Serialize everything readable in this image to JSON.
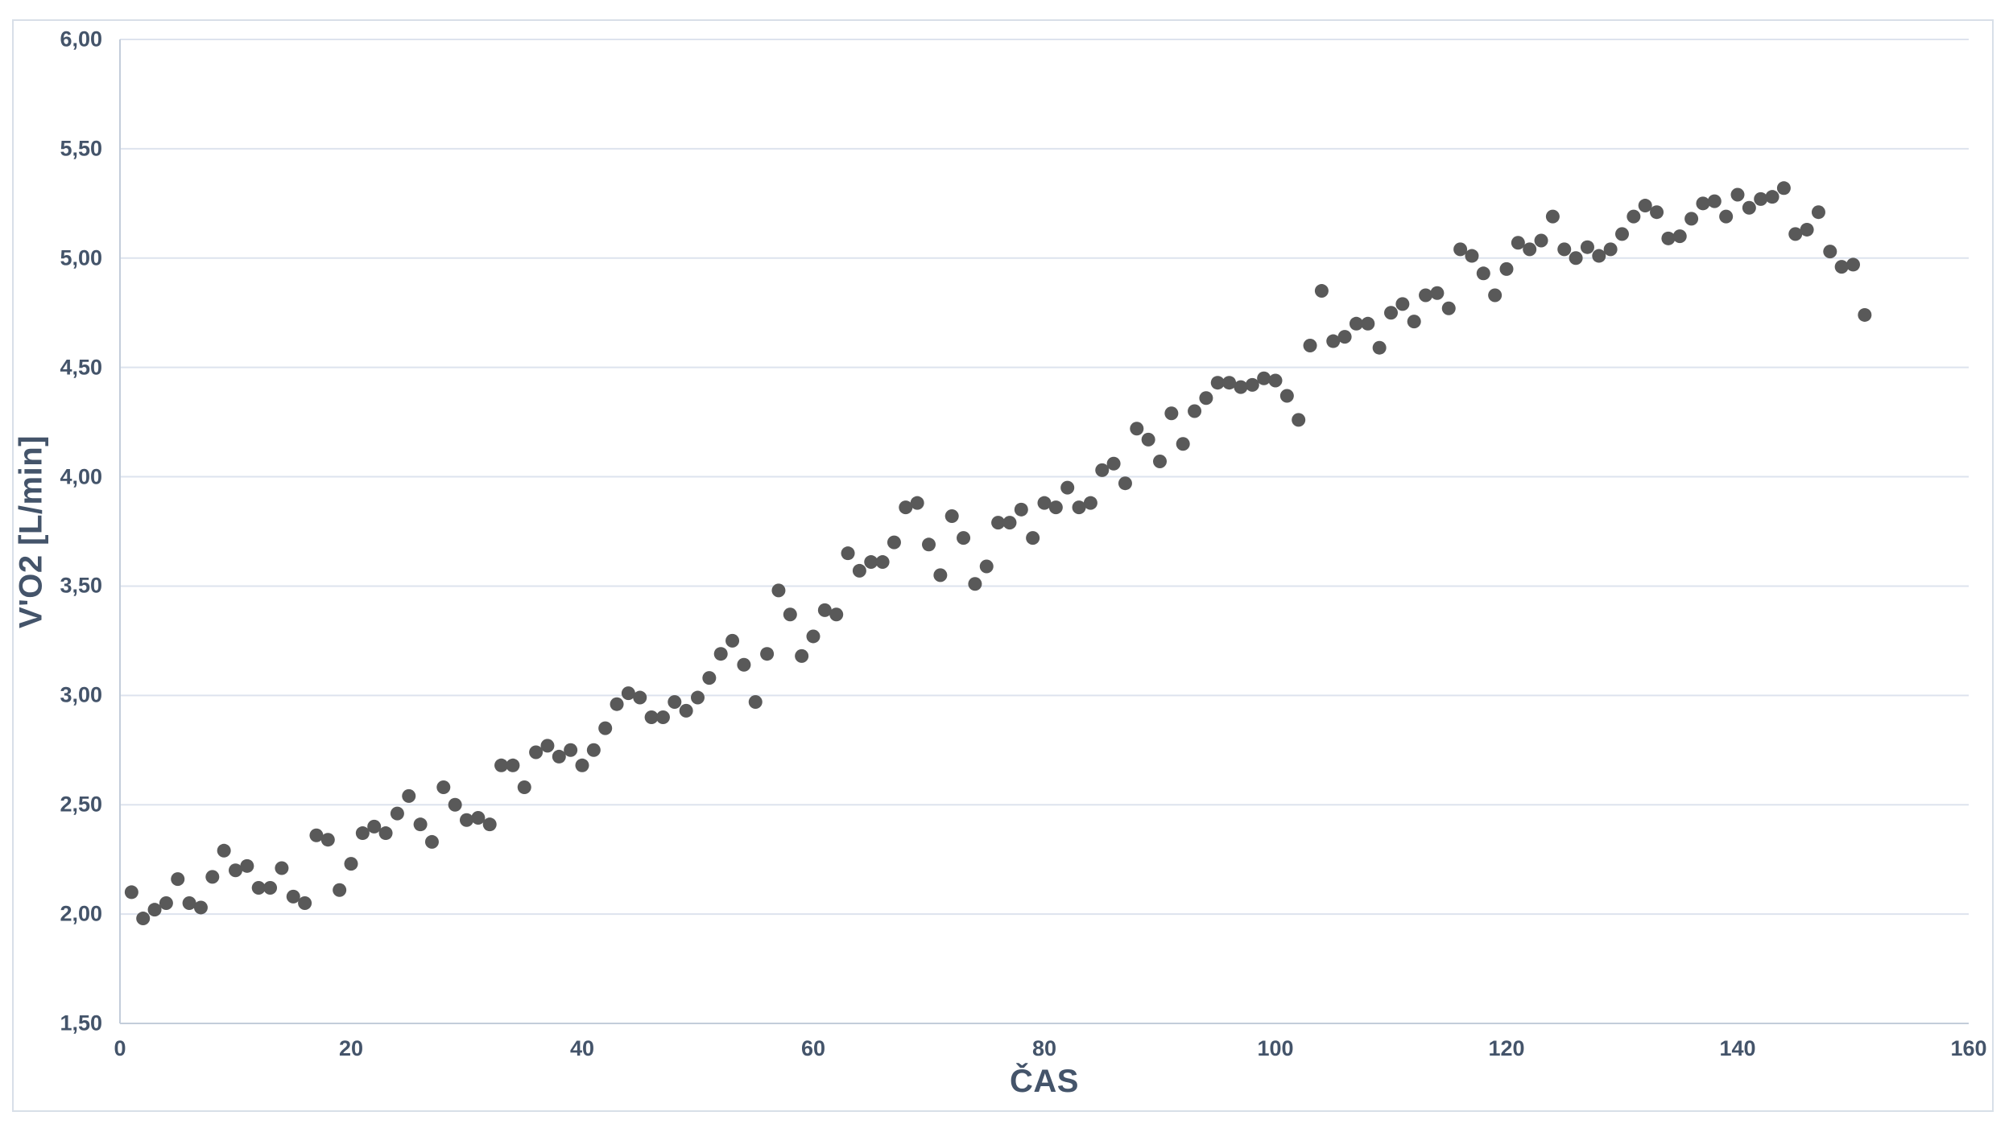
{
  "colors": {
    "point": "#595959",
    "axis_text": "#44546a",
    "gridline": "#dde3ee",
    "axis_line": "#c3cdda",
    "frame_border": "#d8dfe8",
    "background": "#ffffff"
  },
  "chart_data": {
    "type": "scatter",
    "title": "",
    "xlabel": "ČAS",
    "ylabel": "V'O2 [L/min]",
    "xlim": [
      0,
      160
    ],
    "ylim": [
      1.5,
      6.0
    ],
    "grid": "horizontal-only",
    "legend": "none",
    "x_tick_values": [
      0,
      20,
      40,
      60,
      80,
      100,
      120,
      140,
      160
    ],
    "x_tick_labels": [
      "0",
      "20",
      "40",
      "60",
      "80",
      "100",
      "120",
      "140",
      "160"
    ],
    "y_tick_values": [
      1.5,
      2.0,
      2.5,
      3.0,
      3.5,
      4.0,
      4.5,
      5.0,
      5.5,
      6.0
    ],
    "y_tick_labels": [
      "1,50",
      "2,00",
      "2,50",
      "3,00",
      "3,50",
      "4,00",
      "4,50",
      "5,00",
      "5,50",
      "6,00"
    ],
    "series": [
      {
        "name": "V'O2",
        "x": [
          1,
          2,
          3,
          4,
          5,
          6,
          7,
          8,
          9,
          10,
          11,
          12,
          13,
          14,
          15,
          16,
          17,
          18,
          19,
          20,
          21,
          22,
          23,
          24,
          25,
          26,
          27,
          28,
          29,
          30,
          31,
          32,
          33,
          34,
          35,
          36,
          37,
          38,
          39,
          40,
          41,
          42,
          43,
          44,
          45,
          46,
          47,
          48,
          49,
          50,
          51,
          52,
          53,
          54,
          55,
          56,
          57,
          58,
          59,
          60,
          61,
          62,
          63,
          64,
          65,
          66,
          67,
          68,
          69,
          70,
          71,
          72,
          73,
          74,
          75,
          76,
          77,
          78,
          79,
          80,
          81,
          82,
          83,
          84,
          85,
          86,
          87,
          88,
          89,
          90,
          91,
          92,
          93,
          94,
          95,
          96,
          97,
          98,
          99,
          100,
          101,
          102,
          103,
          104,
          105,
          106,
          107,
          108,
          109,
          110,
          111,
          112,
          113,
          114,
          115,
          116,
          117,
          118,
          119,
          120,
          121,
          122,
          123,
          124,
          125,
          126,
          127,
          128,
          129,
          130,
          131,
          132,
          133,
          134,
          135,
          136,
          137,
          138,
          139,
          140,
          141,
          142,
          143,
          144,
          145,
          146,
          147,
          148,
          149,
          150,
          151
        ],
        "y": [
          2.1,
          1.98,
          2.02,
          2.05,
          2.16,
          2.05,
          2.03,
          2.17,
          2.29,
          2.2,
          2.22,
          2.12,
          2.12,
          2.21,
          2.08,
          2.05,
          2.36,
          2.34,
          2.11,
          2.23,
          2.37,
          2.4,
          2.37,
          2.46,
          2.54,
          2.41,
          2.33,
          2.58,
          2.5,
          2.43,
          2.44,
          2.41,
          2.68,
          2.68,
          2.58,
          2.74,
          2.77,
          2.72,
          2.75,
          2.68,
          2.75,
          2.85,
          2.96,
          3.01,
          2.99,
          2.9,
          2.9,
          2.97,
          2.93,
          2.99,
          3.08,
          3.19,
          3.25,
          3.14,
          2.97,
          3.19,
          3.48,
          3.37,
          3.18,
          3.27,
          3.39,
          3.37,
          3.65,
          3.57,
          3.61,
          3.61,
          3.7,
          3.86,
          3.88,
          3.69,
          3.55,
          3.82,
          3.72,
          3.51,
          3.59,
          3.79,
          3.79,
          3.85,
          3.72,
          3.88,
          3.86,
          3.95,
          3.86,
          3.88,
          4.03,
          4.06,
          3.97,
          4.22,
          4.17,
          4.07,
          4.29,
          4.15,
          4.3,
          4.36,
          4.43,
          4.43,
          4.41,
          4.42,
          4.45,
          4.44,
          4.37,
          4.26,
          4.6,
          4.85,
          4.62,
          4.64,
          4.7,
          4.7,
          4.59,
          4.75,
          4.79,
          4.71,
          4.83,
          4.84,
          4.77,
          5.04,
          5.01,
          4.93,
          4.83,
          4.95,
          5.07,
          5.04,
          5.08,
          5.19,
          5.04,
          5.0,
          5.05,
          5.01,
          5.04,
          5.11,
          5.19,
          5.24,
          5.21,
          5.09,
          5.1,
          5.18,
          5.25,
          5.26,
          5.19,
          5.29,
          5.23,
          5.27,
          5.28,
          5.32,
          5.11,
          5.13,
          5.21,
          5.03,
          4.96,
          4.97,
          4.74
        ]
      }
    ]
  }
}
